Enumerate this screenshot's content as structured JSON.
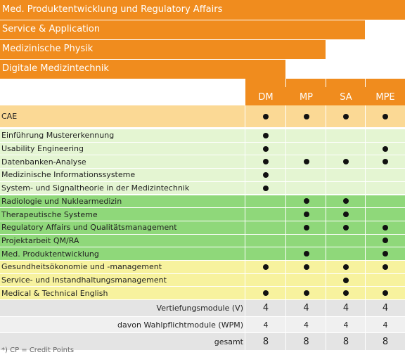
{
  "header_rows": [
    "Med. Produktentwicklung und Regulatory Affairs",
    "Service & Application",
    "Medizinische Physik",
    "Digitale Medizintechnik"
  ],
  "columns": [
    "DM",
    "MP",
    "SA",
    "MPE"
  ],
  "modules": [
    {
      "name": "CAE",
      "group": "core",
      "dots": [
        true,
        true,
        true,
        true
      ]
    },
    {
      "name": "Einführung Mustererkennung",
      "group": "dm",
      "dots": [
        true,
        false,
        false,
        false
      ]
    },
    {
      "name": "Usability Engineering",
      "group": "dm",
      "dots": [
        true,
        false,
        false,
        true
      ]
    },
    {
      "name": "Datenbanken-Analyse",
      "group": "dm",
      "dots": [
        true,
        true,
        true,
        true
      ]
    },
    {
      "name": "Medizinische Informationssysteme",
      "group": "dm",
      "dots": [
        true,
        false,
        false,
        false
      ]
    },
    {
      "name": "System- und Signaltheorie in der Medizintechnik",
      "group": "dm",
      "dots": [
        true,
        false,
        false,
        false
      ]
    },
    {
      "name": "Radiologie und Nuklearmedizin",
      "group": "mp",
      "dots": [
        false,
        true,
        true,
        false
      ]
    },
    {
      "name": "Therapeutische Systeme",
      "group": "mp",
      "dots": [
        false,
        true,
        true,
        false
      ]
    },
    {
      "name": "Regulatory Affairs und Qualitätsmanagement",
      "group": "mp",
      "dots": [
        false,
        true,
        true,
        true
      ]
    },
    {
      "name": "Projektarbeit QM/RA",
      "group": "mp",
      "dots": [
        false,
        false,
        false,
        true
      ]
    },
    {
      "name": "Med. Produktentwicklung",
      "group": "mp",
      "dots": [
        false,
        true,
        false,
        true
      ]
    },
    {
      "name": "Gesundheitsökonomie und -management",
      "group": "sa",
      "dots": [
        true,
        true,
        true,
        true
      ]
    },
    {
      "name": "Service- und Instandhaltungsmanagement",
      "group": "sa",
      "dots": [
        false,
        false,
        true,
        false
      ]
    },
    {
      "name": "Medical & Technical English",
      "group": "sa",
      "dots": [
        true,
        true,
        true,
        true
      ]
    }
  ],
  "summary": [
    {
      "label": "Vertiefungsmodule (V)",
      "values": [
        "4",
        "4",
        "4",
        "4"
      ],
      "small": false
    },
    {
      "label": "davon Wahlpflichtmodule (WPM)",
      "values": [
        "4",
        "4",
        "4",
        "4"
      ],
      "small": true
    },
    {
      "label": "gesamt",
      "values": [
        "8",
        "8",
        "8",
        "8"
      ],
      "small": false
    }
  ],
  "footnote": "*) CP = Credit Points",
  "colors": {
    "orange": "#f08c1e",
    "core": "#fbd995",
    "dm": "#e4f5d2",
    "mp": "#8fd87a",
    "sa": "#f7f29e",
    "summary_a": "#e4e4e4",
    "summary_b": "#f0f0f0"
  }
}
